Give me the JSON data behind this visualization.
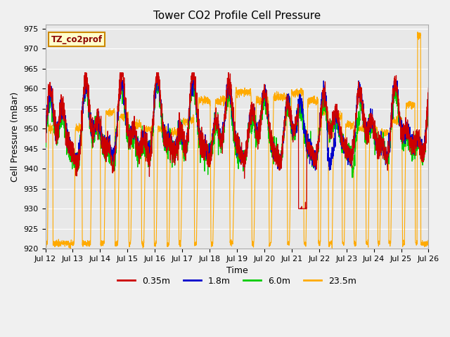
{
  "title": "Tower CO2 Profile Cell Pressure",
  "xlabel": "Time",
  "ylabel": "Cell Pressure (mBar)",
  "ylim": [
    920,
    976
  ],
  "yticks": [
    920,
    925,
    930,
    935,
    940,
    945,
    950,
    955,
    960,
    965,
    970,
    975
  ],
  "xtick_labels": [
    "Jul 12",
    "Jul 13",
    "Jul 14",
    "Jul 15",
    "Jul 16",
    "Jul 17",
    "Jul 18",
    "Jul 19",
    "Jul 20",
    "Jul 21",
    "Jul 22",
    "Jul 23",
    "Jul 24",
    "Jul 25",
    "Jul 26"
  ],
  "colors": {
    "0.35m": "#cc0000",
    "1.8m": "#0000cc",
    "6.0m": "#00cc00",
    "23.5m": "#ffaa00"
  },
  "legend_label": "TZ_co2prof",
  "legend_box_color": "#ffffcc",
  "legend_box_edge": "#cc8800",
  "plot_bg_color": "#e8e8e8",
  "fig_bg_color": "#f0f0f0",
  "grid_color": "#ffffff",
  "n_points": 3000
}
